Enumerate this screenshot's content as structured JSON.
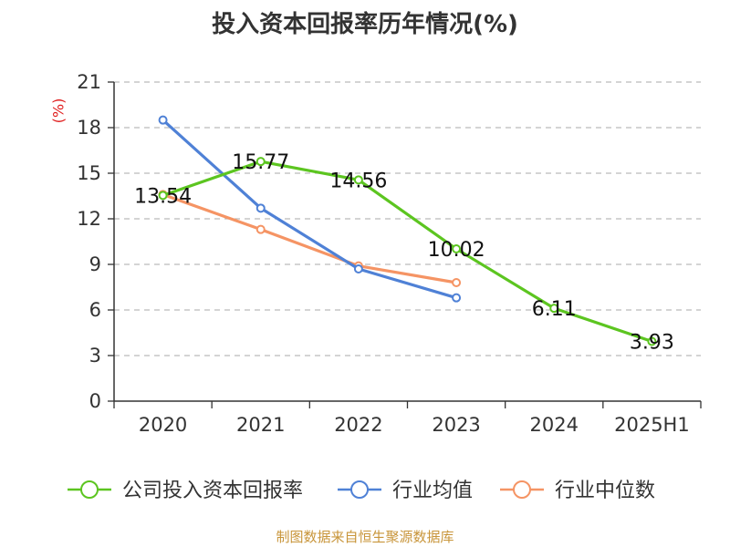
{
  "chart_data": {
    "type": "line",
    "title": "投入资本回报率历年情况(%)",
    "ylabel": "(%)",
    "categories": [
      "2020",
      "2021",
      "2022",
      "2023",
      "2024",
      "2025H1"
    ],
    "ylim": [
      0,
      21
    ],
    "yticks": [
      0,
      3,
      6,
      9,
      12,
      15,
      18,
      21
    ],
    "grid": true,
    "legend_position": "bottom",
    "series": [
      {
        "name": "公司投入资本回报率",
        "color": "#5cc520",
        "values": [
          13.54,
          15.77,
          14.56,
          10.02,
          6.11,
          3.93
        ],
        "show_labels": true
      },
      {
        "name": "行业均值",
        "color": "#4f81d6",
        "values": [
          18.5,
          12.7,
          8.7,
          6.8,
          null,
          null
        ],
        "show_labels": false
      },
      {
        "name": "行业中位数",
        "color": "#f59464",
        "values": [
          13.6,
          11.3,
          8.9,
          7.8,
          null,
          null
        ],
        "show_labels": false
      }
    ],
    "data_labels": [
      "13.54",
      "15.77",
      "14.56",
      "10.02",
      "6.11",
      "3.93"
    ]
  },
  "source_text": "制图数据来自恒生聚源数据库",
  "colors": {
    "title": "#333333",
    "unit": "#e02020",
    "source": "#c8953a",
    "axis": "#333333",
    "grid": "#bbbbbb"
  }
}
